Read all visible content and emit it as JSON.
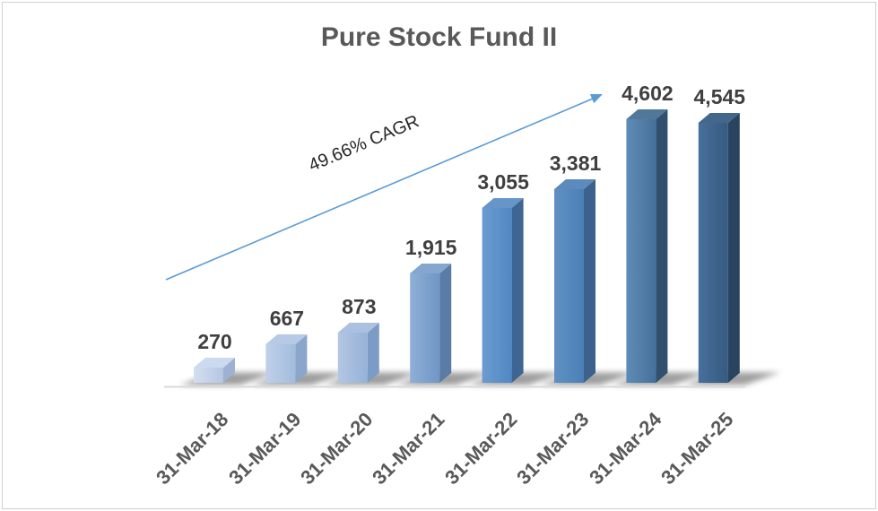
{
  "frame": {
    "background": "#ffffff",
    "border_color": "#d0d0d0"
  },
  "chart_data": {
    "type": "bar",
    "style": "3d-column",
    "title": "Pure Stock Fund II",
    "xlabel": "",
    "ylabel": "",
    "ylim": [
      0,
      4800
    ],
    "grid": false,
    "legend": false,
    "value_axis_visible": false,
    "categories": [
      "31-Mar-18",
      "31-Mar-19",
      "31-Mar-20",
      "31-Mar-21",
      "31-Mar-22",
      "31-Mar-23",
      "31-Mar-24",
      "31-Mar-25"
    ],
    "values": [
      270,
      667,
      873,
      1915,
      3055,
      3381,
      4602,
      4545
    ],
    "value_labels": [
      "270",
      "667",
      "873",
      "1,915",
      "3,055",
      "3,381",
      "4,602",
      "4,545"
    ],
    "annotation": {
      "text": "49.66% CAGR",
      "arrow_color": "#5b9bd5",
      "text_color": "#262626"
    },
    "title_color": "#595959",
    "value_label_color": "#3f3f3f",
    "category_label_color": "#595959",
    "baseline_color": "#d9d9d9",
    "shadow_color": "#3c3c3c",
    "bar_colors": [
      {
        "front_light": "#d3def0",
        "front_dark": "#b6c6e2",
        "side": "#9db1d3",
        "top": "#ccd9ee"
      },
      {
        "front_light": "#bfd0e9",
        "front_dark": "#a3bcdd",
        "side": "#8aa6cb",
        "top": "#b7c9e6"
      },
      {
        "front_light": "#b2c7e3",
        "front_dark": "#96b2d7",
        "side": "#7d9cc5",
        "top": "#abc1e1"
      },
      {
        "front_light": "#8fafd6",
        "front_dark": "#6f96c5",
        "side": "#5a7ba5",
        "top": "#84a6cf"
      },
      {
        "front_light": "#6c9bd0",
        "front_dark": "#5088c4",
        "side": "#3f6592",
        "top": "#6695c9"
      },
      {
        "front_light": "#6090c4",
        "front_dark": "#4a80b6",
        "side": "#3c618b",
        "top": "#5c8abc"
      },
      {
        "front_light": "#5f8cb6",
        "front_dark": "#45709a",
        "side": "#31506f",
        "top": "#517898"
      },
      {
        "front_light": "#47709b",
        "front_dark": "#365a80",
        "side": "#2a4460",
        "top": "#43678b"
      }
    ]
  }
}
